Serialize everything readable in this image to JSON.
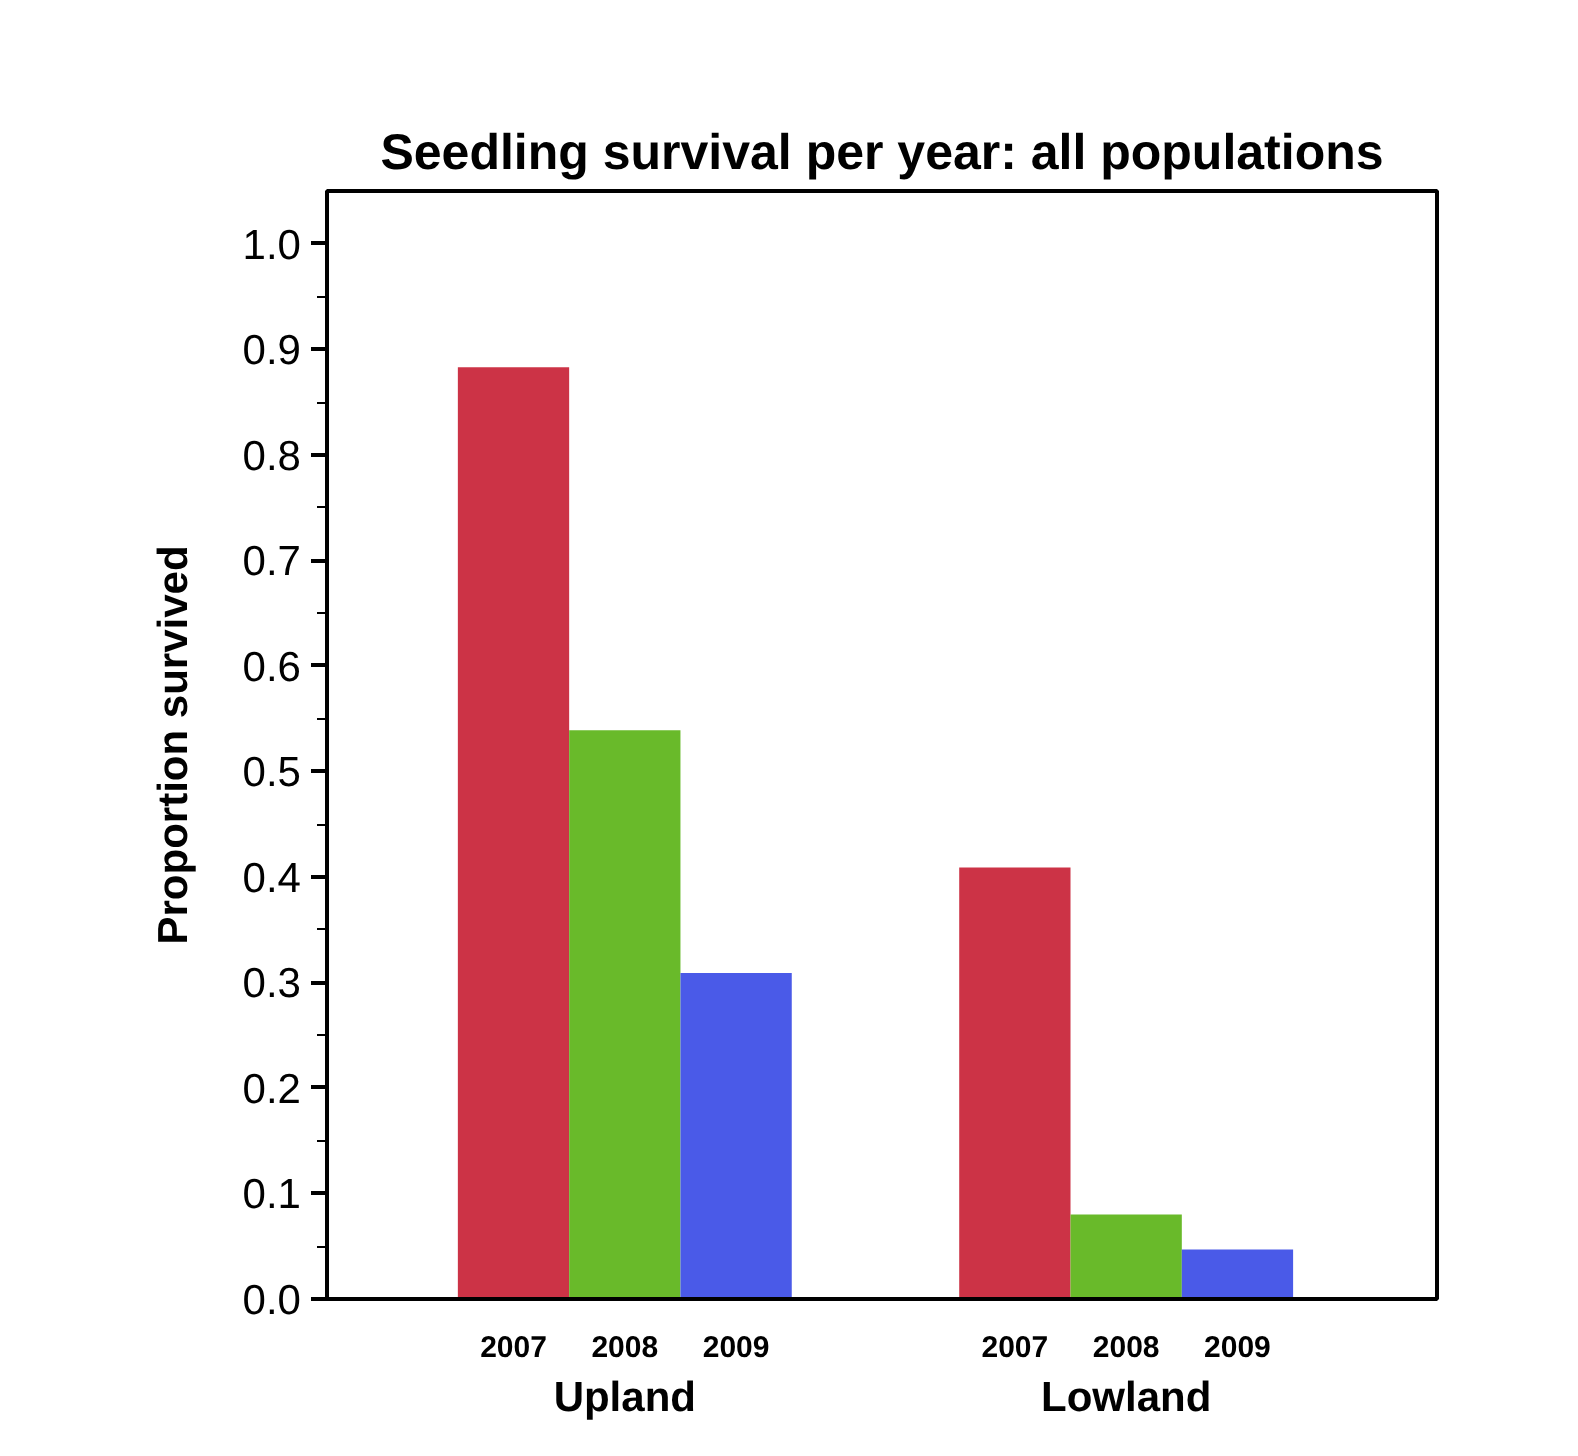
{
  "chart_data": {
    "type": "bar",
    "title": "Seedling survival per year: all populations",
    "ylabel": "Proportion survived",
    "categories": [
      "Upland",
      "Lowland"
    ],
    "series": [
      {
        "name": "2007",
        "color": "#cc3346",
        "values": [
          0.883,
          0.409
        ]
      },
      {
        "name": "2008",
        "color": "#69ba2a",
        "values": [
          0.539,
          0.08
        ]
      },
      {
        "name": "2009",
        "color": "#4a5ae8",
        "values": [
          0.309,
          0.047
        ]
      }
    ],
    "ylim": [
      0,
      1.05
    ],
    "yticks": [
      {
        "value": 0,
        "label": "0.0"
      },
      0.1,
      0.2,
      0.3,
      0.4,
      0.5,
      0.6,
      0.7,
      0.8,
      0.9,
      {
        "value": 1,
        "label": "1.0"
      }
    ],
    "grid": false,
    "legend": false
  }
}
